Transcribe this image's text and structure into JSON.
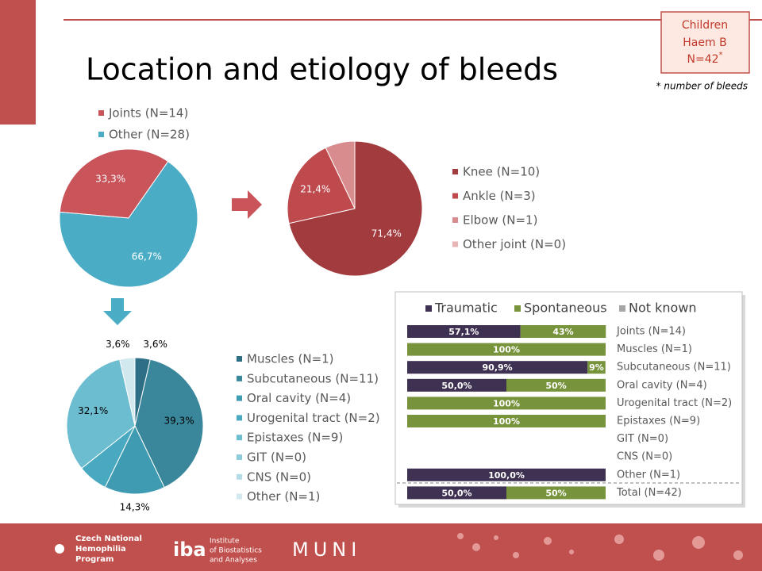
{
  "slide": {
    "title": "Location and etiology of bleeds",
    "badge": [
      "Children",
      "Haem B",
      "N=42"
    ],
    "badge_mark": "*",
    "footnote": "* number of bleeds",
    "logos": [
      "Czech National",
      "Hemophilia",
      "Program",
      "iba",
      "Institute",
      "of Biostatistics",
      "and Analyses",
      "MUNI"
    ]
  },
  "chart_data": [
    {
      "type": "pie",
      "categories": [
        "Joints (N=14)",
        "Other (N=28)"
      ],
      "values": [
        33.3,
        66.7
      ],
      "value_labels": [
        "33,3%",
        "66,7%"
      ],
      "colors": [
        "#c9545a",
        "#4bacc6"
      ]
    },
    {
      "type": "pie",
      "categories": [
        "Knee (N=10)",
        "Ankle (N=3)",
        "Elbow (N=1)",
        "Other joint (N=0)"
      ],
      "values": [
        71.4,
        21.4,
        7.1,
        0
      ],
      "value_labels": [
        "71,4%",
        "21,4%",
        null,
        null
      ],
      "colors": [
        "#a23b3e",
        "#bf4a4e",
        "#d98c8e",
        "#e8b4b5"
      ]
    },
    {
      "type": "pie",
      "categories": [
        "Muscles (N=1)",
        "Subcutaneous (N=11)",
        "Oral cavity (N=4)",
        "Urogenital tract (N=2)",
        "Epistaxes (N=9)",
        "GIT (N=0)",
        "CNS (N=0)",
        "Other (N=1)"
      ],
      "values": [
        3.6,
        39.3,
        14.3,
        7.1,
        32.1,
        0,
        0,
        3.6
      ],
      "value_labels": [
        "3,6%",
        "39,3%",
        "14,3%",
        null,
        "32,1%",
        null,
        null,
        "3,6%"
      ],
      "colors": [
        "#2f6f86",
        "#3a879c",
        "#3e9bb1",
        "#48a9c0",
        "#6cbdd0",
        "#8ecbdb",
        "#b4dce7",
        "#d2e8ef"
      ]
    },
    {
      "type": "bar",
      "orientation": "horizontal",
      "stacked": true,
      "categories": [
        "Joints (N=14)",
        "Muscles (N=1)",
        "Subcutaneous (N=11)",
        "Oral cavity (N=4)",
        "Urogenital tract (N=2)",
        "Epistaxes (N=9)",
        "GIT (N=0)",
        "CNS (N=0)",
        "Other (N=1)",
        "Total (N=42)"
      ],
      "xlim": [
        0,
        100
      ],
      "series": [
        {
          "name": "Traumatic",
          "color": "#3f3151",
          "values": [
            57.1,
            0,
            90.9,
            50.0,
            0,
            0,
            0,
            0,
            100.0,
            50.0
          ],
          "value_labels": [
            "57,1%",
            null,
            "90,9%",
            "50,0%",
            null,
            null,
            null,
            null,
            "100,0%",
            "50,0%"
          ]
        },
        {
          "name": "Spontaneous",
          "color": "#77933c",
          "values": [
            43,
            100,
            9,
            50,
            100,
            100,
            0,
            0,
            0,
            50
          ],
          "value_labels": [
            "43%",
            "100%",
            "9%",
            "50%",
            "100%",
            "100%",
            null,
            null,
            null,
            "50%"
          ]
        },
        {
          "name": "Not known",
          "color": "#a6a6a6",
          "values": [
            0,
            0,
            0,
            0,
            0,
            0,
            0,
            0,
            0,
            0
          ],
          "value_labels": [
            null,
            null,
            null,
            null,
            null,
            null,
            null,
            null,
            null,
            null
          ]
        }
      ]
    }
  ]
}
